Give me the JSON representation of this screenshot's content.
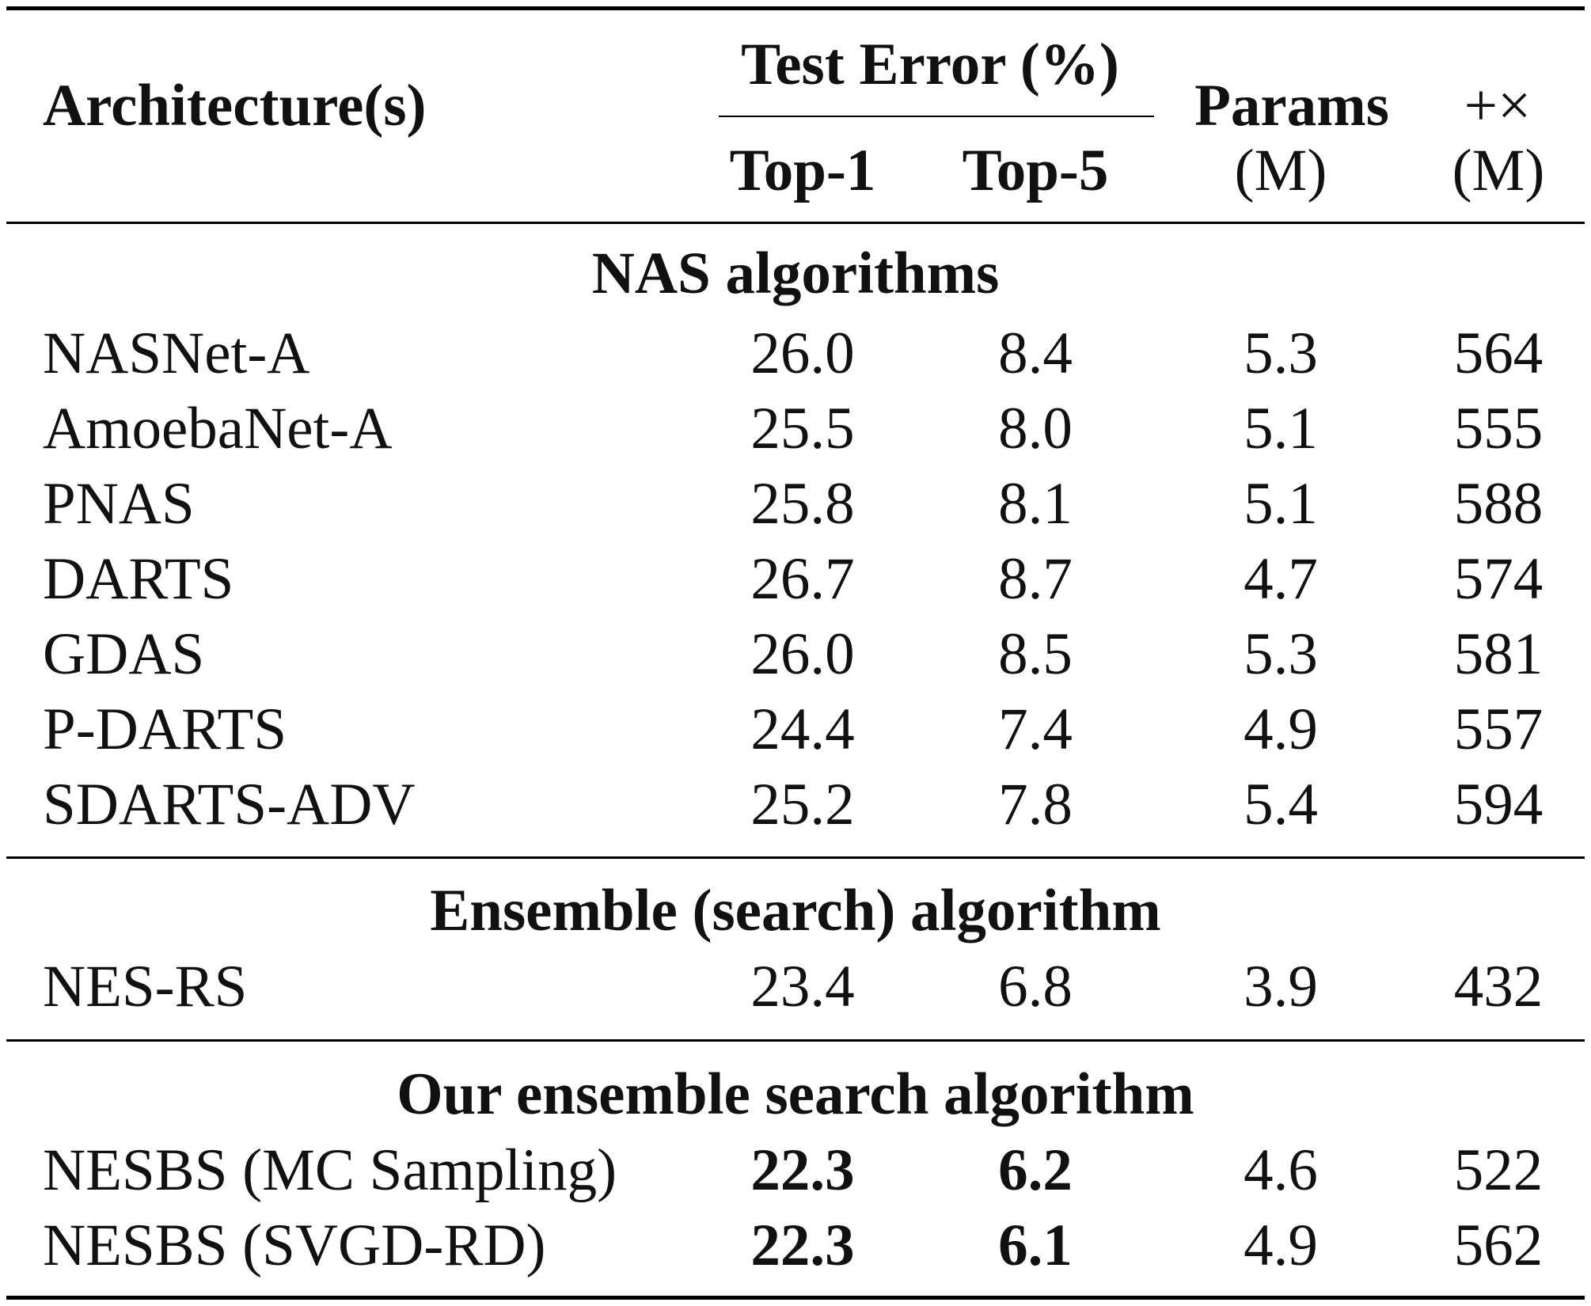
{
  "header": {
    "architecture": "Architecture(s)",
    "test_error": "Test Error (%)",
    "top1": "Top-1",
    "top5": "Top-5",
    "params": "Params",
    "params_unit": "(M)",
    "flops": "+×",
    "flops_unit": "(M)"
  },
  "sections": [
    {
      "title": "NAS algorithms",
      "rows": [
        {
          "arch": "NASNet-A",
          "top1": "26.0",
          "top5": "8.4",
          "params": "5.3",
          "flops": "564"
        },
        {
          "arch": "AmoebaNet-A",
          "top1": "25.5",
          "top5": "8.0",
          "params": "5.1",
          "flops": "555"
        },
        {
          "arch": "PNAS",
          "top1": "25.8",
          "top5": "8.1",
          "params": "5.1",
          "flops": "588"
        },
        {
          "arch": "DARTS",
          "top1": "26.7",
          "top5": "8.7",
          "params": "4.7",
          "flops": "574"
        },
        {
          "arch": "GDAS",
          "top1": "26.0",
          "top5": "8.5",
          "params": "5.3",
          "flops": "581"
        },
        {
          "arch": "P-DARTS",
          "top1": "24.4",
          "top5": "7.4",
          "params": "4.9",
          "flops": "557"
        },
        {
          "arch": "SDARTS-ADV",
          "top1": "25.2",
          "top5": "7.8",
          "params": "5.4",
          "flops": "594"
        }
      ]
    },
    {
      "title": "Ensemble (search) algorithm",
      "rows": [
        {
          "arch": "NES-RS",
          "top1": "23.4",
          "top5": "6.8",
          "params": "3.9",
          "flops": "432"
        }
      ]
    },
    {
      "title": "Our ensemble search algorithm",
      "rows": [
        {
          "arch": "NESBS (MC Sampling)",
          "top1": "22.3",
          "top5": "6.2",
          "params": "4.6",
          "flops": "522",
          "bold": [
            "top1",
            "top5"
          ]
        },
        {
          "arch": "NESBS (SVGD-RD)",
          "top1": "22.3",
          "top5": "6.1",
          "params": "4.9",
          "flops": "562",
          "bold": [
            "top1",
            "top5"
          ]
        }
      ]
    }
  ]
}
